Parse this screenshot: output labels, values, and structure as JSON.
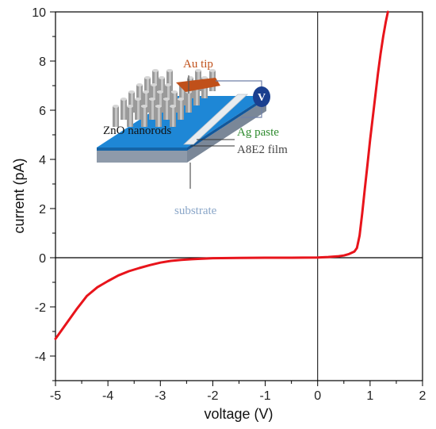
{
  "chart_data": {
    "type": "line",
    "xlabel": "voltage (V)",
    "ylabel": "current (pA)",
    "xlim": [
      -5,
      2
    ],
    "ylim": [
      -5,
      10
    ],
    "xticks": [
      -5,
      -4,
      -3,
      -2,
      -1,
      0,
      1,
      2
    ],
    "yticks": [
      -4,
      -2,
      0,
      2,
      4,
      6,
      8,
      10
    ],
    "grid": false,
    "series": [
      {
        "color": "#e8141b",
        "x": [
          -5.0,
          -4.8,
          -4.6,
          -4.4,
          -4.2,
          -4.0,
          -3.8,
          -3.6,
          -3.4,
          -3.2,
          -3.0,
          -2.8,
          -2.6,
          -2.4,
          -2.2,
          -2.0,
          -1.5,
          -1.0,
          -0.5,
          0.0,
          0.2,
          0.4,
          0.5,
          0.6,
          0.7,
          0.75,
          0.8,
          0.85,
          0.9,
          0.95,
          1.0,
          1.05,
          1.1,
          1.15,
          1.2,
          1.25,
          1.3,
          1.34
        ],
        "y": [
          -3.3,
          -2.7,
          -2.1,
          -1.55,
          -1.2,
          -0.95,
          -0.72,
          -0.55,
          -0.42,
          -0.3,
          -0.2,
          -0.13,
          -0.09,
          -0.06,
          -0.04,
          -0.02,
          -0.01,
          0.0,
          0.0,
          0.01,
          0.03,
          0.06,
          0.09,
          0.15,
          0.25,
          0.4,
          0.9,
          1.8,
          2.8,
          3.8,
          4.8,
          5.7,
          6.6,
          7.5,
          8.3,
          9.0,
          9.6,
          10.0
        ]
      }
    ]
  },
  "inset": {
    "labels": {
      "au_tip": "Au tip",
      "voltmeter": "V",
      "zno": "ZnO nanorods",
      "ag": "Ag paste",
      "film": "A8E2 film",
      "substrate": "substrate"
    },
    "colors": {
      "au_tip": "#c0501a",
      "voltmeter": "#1a3f8f",
      "film_top": "#1e87d6",
      "ag_label": "#2e8b2e",
      "substrate_label": "#8aa6c8"
    }
  }
}
